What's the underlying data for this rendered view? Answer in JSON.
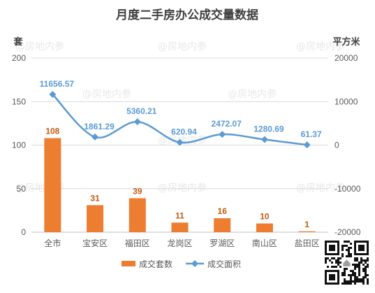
{
  "watermark": "@房地内参",
  "chart_data": {
    "type": "bar",
    "title": "月度二手房办公成交量数据",
    "categories": [
      "全市",
      "宝安区",
      "福田区",
      "龙岗区",
      "罗湖区",
      "南山区",
      "盐田区"
    ],
    "series": [
      {
        "name": "成交套数",
        "type": "bar",
        "axis": "left",
        "values": [
          108,
          31,
          39,
          11,
          16,
          10,
          1
        ],
        "color": "#ED7D31",
        "label_color": "#C55A11"
      },
      {
        "name": "成交面积",
        "type": "line",
        "axis": "right",
        "smooth": true,
        "marker": "diamond",
        "values": [
          11656.57,
          1861.29,
          5360.21,
          620.94,
          2472.07,
          1280.69,
          61.37
        ],
        "color": "#5B9BD5",
        "label_color": "#5B9BD5"
      }
    ],
    "ylabel": "套",
    "y2label": "平方米",
    "ylim": [
      0,
      200
    ],
    "yticks": [
      0,
      50,
      100,
      150,
      200
    ],
    "y2lim": [
      -20000,
      20000
    ],
    "y2ticks": [
      -20000,
      -10000,
      0,
      10000,
      20000
    ],
    "grid": true,
    "data_labels": true,
    "legend_position": "bottom"
  }
}
